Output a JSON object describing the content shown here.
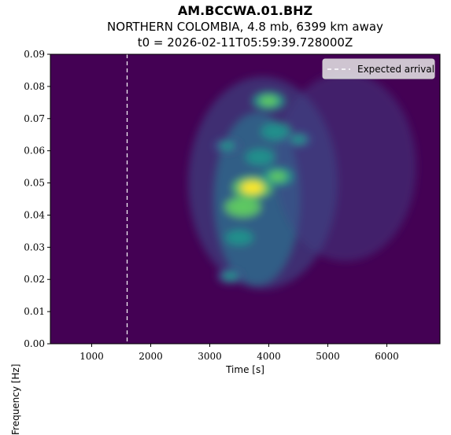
{
  "chart_data": {
    "type": "heatmap",
    "title": "AM.BCCWA.01.BHZ",
    "subtitle": "NORTHERN COLOMBIA, 4.8 mb, 6399 km away",
    "subtitle2": "t0 = 2026-02-11T05:59:39.728000Z",
    "xlabel": "Time [s]",
    "ylabel": "Frequency [Hz]",
    "xlim": [
      300,
      6900
    ],
    "ylim": [
      0.0,
      0.09
    ],
    "xticks": [
      "1000",
      "2000",
      "3000",
      "4000",
      "5000",
      "6000"
    ],
    "xtick_values": [
      1000,
      2000,
      3000,
      4000,
      5000,
      6000
    ],
    "yticks": [
      "0.00",
      "0.01",
      "0.02",
      "0.03",
      "0.04",
      "0.05",
      "0.06",
      "0.07",
      "0.08",
      "0.09"
    ],
    "ytick_values": [
      0.0,
      0.01,
      0.02,
      0.03,
      0.04,
      0.05,
      0.06,
      0.07,
      0.08,
      0.09
    ],
    "expected_arrival_x": 1600,
    "legend": {
      "label": "Expected arrival",
      "placement": "top-right"
    },
    "colormap": "viridis",
    "hotspots": [
      {
        "x": 3720,
        "y": 0.0485,
        "intensity": 1.0
      },
      {
        "x": 3560,
        "y": 0.0425,
        "intensity": 0.85
      },
      {
        "x": 4000,
        "y": 0.0755,
        "intensity": 0.7
      },
      {
        "x": 4150,
        "y": 0.052,
        "intensity": 0.65
      },
      {
        "x": 4120,
        "y": 0.066,
        "intensity": 0.6
      },
      {
        "x": 3850,
        "y": 0.058,
        "intensity": 0.55
      },
      {
        "x": 3500,
        "y": 0.033,
        "intensity": 0.5
      },
      {
        "x": 3350,
        "y": 0.021,
        "intensity": 0.4
      },
      {
        "x": 3300,
        "y": 0.0615,
        "intensity": 0.45
      },
      {
        "x": 4500,
        "y": 0.0635,
        "intensity": 0.45
      }
    ]
  }
}
